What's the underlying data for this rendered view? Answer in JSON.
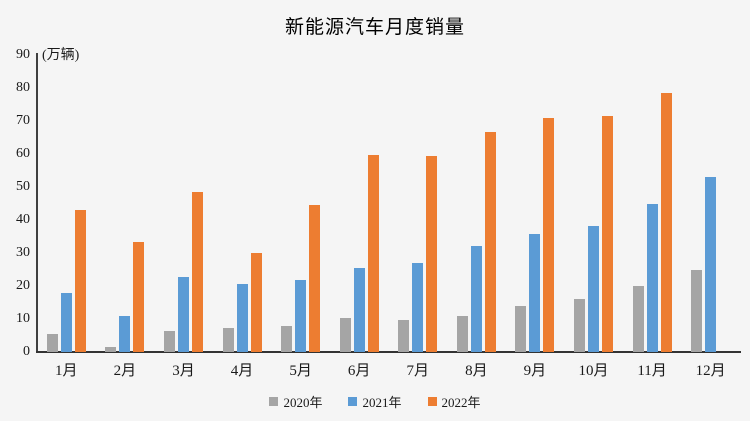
{
  "chart_data": {
    "type": "bar",
    "title": "新能源汽车月度销量",
    "unit_label": "(万辆)",
    "xlabel": "",
    "ylabel": "万辆",
    "ylim": [
      0,
      90
    ],
    "ytick_step": 10,
    "yticks": [
      0,
      10,
      20,
      30,
      40,
      50,
      60,
      70,
      80,
      90
    ],
    "grid": false,
    "legend_position": "bottom",
    "categories": [
      "1月",
      "2月",
      "3月",
      "4月",
      "5月",
      "6月",
      "7月",
      "8月",
      "9月",
      "10月",
      "11月",
      "12月"
    ],
    "series": [
      {
        "name": "2020年",
        "color": "#A5A5A5",
        "values": [
          5.4,
          1.6,
          6.5,
          7.3,
          8.0,
          10.2,
          9.7,
          10.9,
          13.8,
          16.0,
          20.0,
          24.8
        ]
      },
      {
        "name": "2021年",
        "color": "#5B9BD5",
        "values": [
          17.9,
          10.9,
          22.6,
          20.6,
          21.7,
          25.6,
          27.1,
          32.1,
          35.7,
          38.3,
          45.0,
          53.1
        ]
      },
      {
        "name": "2022年",
        "color": "#ED7D31",
        "values": [
          43.1,
          33.4,
          48.4,
          29.9,
          44.7,
          59.6,
          59.3,
          66.6,
          70.8,
          71.4,
          78.6,
          null
        ]
      }
    ],
    "colors": {
      "background": "#f5f5f5",
      "axis": "#333333",
      "text": "#1a1a1a",
      "series_2020": "#A5A5A5",
      "series_2021": "#5B9BD5",
      "series_2022": "#ED7D31"
    }
  }
}
